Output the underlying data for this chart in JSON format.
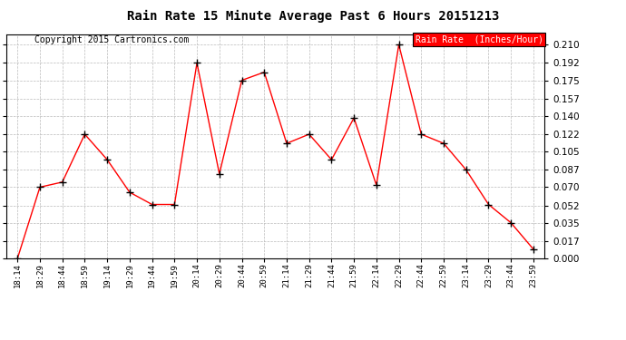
{
  "title": "Rain Rate 15 Minute Average Past 6 Hours 20151213",
  "copyright": "Copyright 2015 Cartronics.com",
  "legend_label": "Rain Rate  (Inches/Hour)",
  "x_labels": [
    "18:14",
    "18:29",
    "18:44",
    "18:59",
    "19:14",
    "19:29",
    "19:44",
    "19:59",
    "20:14",
    "20:29",
    "20:44",
    "20:59",
    "21:14",
    "21:29",
    "21:44",
    "21:59",
    "22:14",
    "22:29",
    "22:44",
    "22:59",
    "23:14",
    "23:29",
    "23:44",
    "23:59"
  ],
  "y_values": [
    0.0,
    0.07,
    0.075,
    0.122,
    0.097,
    0.065,
    0.053,
    0.053,
    0.192,
    0.083,
    0.175,
    0.183,
    0.113,
    0.122,
    0.097,
    0.138,
    0.072,
    0.21,
    0.122,
    0.113,
    0.087,
    0.053,
    0.035,
    0.009
  ],
  "line_color": "red",
  "marker_color": "black",
  "marker_style": "+",
  "ylim": [
    0.0,
    0.2205
  ],
  "yticks": [
    0.0,
    0.017,
    0.035,
    0.052,
    0.07,
    0.087,
    0.105,
    0.122,
    0.14,
    0.157,
    0.175,
    0.192,
    0.21
  ],
  "background_color": "#ffffff",
  "grid_color": "#bbbbbb",
  "title_fontsize": 10,
  "copyright_fontsize": 7,
  "legend_bg": "#ff0000",
  "legend_text_color": "#ffffff",
  "legend_fontsize": 7
}
